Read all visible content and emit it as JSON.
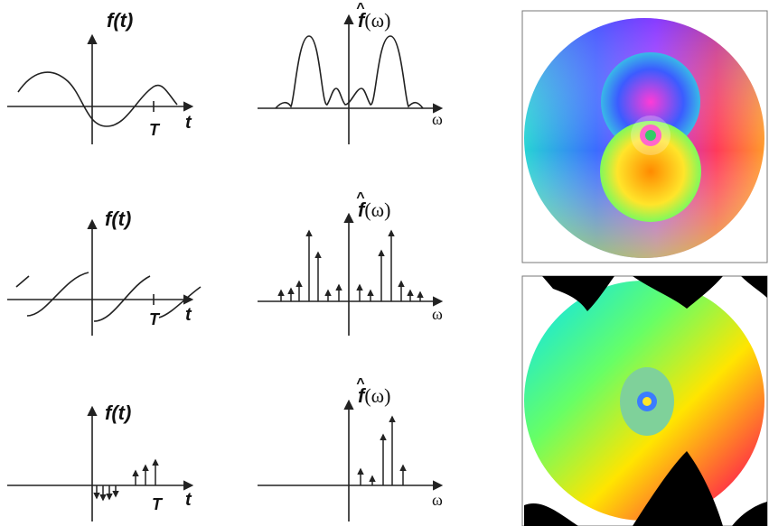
{
  "panels": {
    "time_label": "f(t)",
    "freq_label_hat": "^",
    "freq_label_f": "f",
    "freq_label_omega": "(ω)",
    "t_axis": "t",
    "omega_axis": "ω",
    "period": "T"
  },
  "rows": [
    {
      "name": "continuous",
      "time": "smooth wave",
      "spectrum": "continuous lobes"
    },
    {
      "name": "periodic",
      "time": "sawtooth-like periodic",
      "spectrum": "discrete spikes"
    },
    {
      "name": "sampled",
      "time": "impulse train",
      "spectrum": "discrete spikes"
    }
  ],
  "colors": {
    "ink": "#222222",
    "frame": "#777777"
  },
  "images": [
    {
      "name": "domain-coloring-top",
      "description": "phase plot disk"
    },
    {
      "name": "domain-coloring-bottom",
      "description": "fractal phase plot"
    }
  ]
}
